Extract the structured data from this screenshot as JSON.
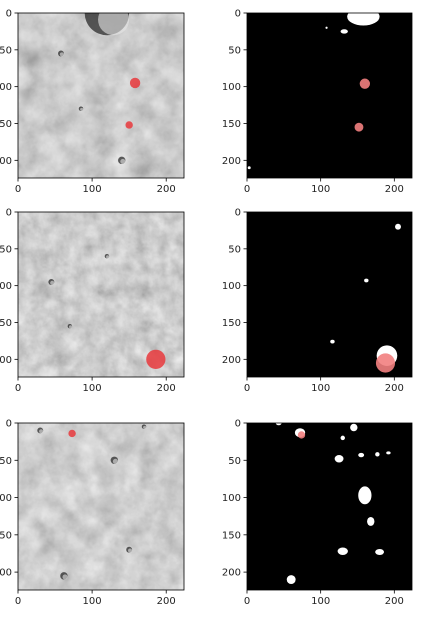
{
  "chart_data": [
    {
      "type": "image",
      "content": "terrain",
      "row": 0,
      "col": 0,
      "xlim": [
        0,
        224
      ],
      "ylim": [
        224,
        0
      ],
      "xticks": [
        0,
        100,
        200
      ],
      "yticks": [
        0,
        50,
        100,
        150,
        200
      ],
      "ytick_labels": [
        "0",
        "50",
        "100",
        "150",
        "200"
      ],
      "craters": [
        {
          "x": 120,
          "y": 0,
          "r": 30
        },
        {
          "x": 58,
          "y": 55,
          "r": 4
        },
        {
          "x": 85,
          "y": 130,
          "r": 3
        },
        {
          "x": 140,
          "y": 200,
          "r": 5
        }
      ],
      "overlays": [
        {
          "x": 158,
          "y": 95,
          "r": 7
        },
        {
          "x": 150,
          "y": 152,
          "r": 5
        }
      ],
      "colors": {
        "overlay": "#e8383c"
      }
    },
    {
      "type": "image",
      "content": "mask",
      "row": 0,
      "col": 1,
      "xlim": [
        0,
        224
      ],
      "ylim": [
        224,
        0
      ],
      "xticks": [
        0,
        100,
        200
      ],
      "yticks": [
        0,
        50,
        100,
        150,
        200
      ],
      "ytick_labels": [
        "0",
        "50",
        "100",
        "150",
        "200"
      ],
      "blobs": [
        {
          "x": 158,
          "y": 5,
          "rx": 22,
          "ry": 12
        },
        {
          "x": 132,
          "y": 25,
          "rx": 5,
          "ry": 3
        },
        {
          "x": 108,
          "y": 20,
          "rx": 1.5,
          "ry": 1.5
        },
        {
          "x": 3,
          "y": 210,
          "rx": 2,
          "ry": 2
        }
      ],
      "overlays": [
        {
          "x": 160,
          "y": 96,
          "r": 7
        },
        {
          "x": 152,
          "y": 155,
          "r": 6
        }
      ],
      "colors": {
        "overlay": "#f28080",
        "blob": "#ffffff",
        "background": "#000000"
      }
    },
    {
      "type": "image",
      "content": "terrain",
      "row": 1,
      "col": 0,
      "xlim": [
        0,
        224
      ],
      "ylim": [
        224,
        0
      ],
      "xticks": [
        0,
        100,
        200
      ],
      "yticks": [
        0,
        50,
        100,
        150,
        200
      ],
      "ytick_labels": [
        "0",
        "50",
        "100",
        "150",
        "200"
      ],
      "craters": [
        {
          "x": 45,
          "y": 95,
          "r": 4
        },
        {
          "x": 70,
          "y": 155,
          "r": 3
        },
        {
          "x": 120,
          "y": 60,
          "r": 3
        }
      ],
      "overlays": [
        {
          "x": 186,
          "y": 200,
          "r": 13
        }
      ],
      "colors": {
        "overlay": "#e8383c"
      }
    },
    {
      "type": "image",
      "content": "mask",
      "row": 1,
      "col": 1,
      "xlim": [
        0,
        224
      ],
      "ylim": [
        224,
        0
      ],
      "xticks": [
        0,
        100,
        200
      ],
      "yticks": [
        0,
        50,
        100,
        150,
        200
      ],
      "ytick_labels": [
        "0",
        "50",
        "100",
        "150",
        "200"
      ],
      "blobs": [
        {
          "x": 205,
          "y": 20,
          "rx": 4,
          "ry": 4
        },
        {
          "x": 162,
          "y": 93,
          "rx": 3,
          "ry": 2.5
        },
        {
          "x": 116,
          "y": 176,
          "rx": 3,
          "ry": 2.5
        },
        {
          "x": 190,
          "y": 195,
          "rx": 14,
          "ry": 14
        }
      ],
      "overlays": [
        {
          "x": 188,
          "y": 205,
          "r": 13
        }
      ],
      "colors": {
        "overlay": "#f28080",
        "blob": "#ffffff",
        "background": "#000000"
      }
    },
    {
      "type": "image",
      "content": "terrain",
      "row": 2,
      "col": 0,
      "xlim": [
        0,
        224
      ],
      "ylim": [
        224,
        0
      ],
      "xticks": [
        0,
        100,
        200
      ],
      "yticks": [
        0,
        50,
        100,
        150,
        200
      ],
      "ytick_labels": [
        "0",
        "50",
        "100",
        "150",
        "200"
      ],
      "craters": [
        {
          "x": 30,
          "y": 10,
          "r": 4
        },
        {
          "x": 130,
          "y": 50,
          "r": 5
        },
        {
          "x": 170,
          "y": 5,
          "r": 3
        },
        {
          "x": 62,
          "y": 205,
          "r": 5
        },
        {
          "x": 150,
          "y": 170,
          "r": 4
        }
      ],
      "overlays": [
        {
          "x": 73,
          "y": 14,
          "r": 5
        }
      ],
      "colors": {
        "overlay": "#e8383c"
      }
    },
    {
      "type": "image",
      "content": "mask",
      "row": 2,
      "col": 1,
      "xlim": [
        0,
        224
      ],
      "ylim": [
        224,
        0
      ],
      "xticks": [
        0,
        100,
        200
      ],
      "yticks": [
        0,
        50,
        100,
        150,
        200
      ],
      "ytick_labels": [
        "0",
        "50",
        "100",
        "150",
        "200"
      ],
      "blobs": [
        {
          "x": 43,
          "y": 0,
          "rx": 4,
          "ry": 3
        },
        {
          "x": 72,
          "y": 13,
          "rx": 7,
          "ry": 6
        },
        {
          "x": 130,
          "y": 20,
          "rx": 3,
          "ry": 3
        },
        {
          "x": 145,
          "y": 6,
          "rx": 5,
          "ry": 5
        },
        {
          "x": 125,
          "y": 48,
          "rx": 6,
          "ry": 5
        },
        {
          "x": 155,
          "y": 43,
          "rx": 4,
          "ry": 3
        },
        {
          "x": 177,
          "y": 42,
          "rx": 3,
          "ry": 3
        },
        {
          "x": 192,
          "y": 40,
          "rx": 3,
          "ry": 2
        },
        {
          "x": 160,
          "y": 97,
          "rx": 9,
          "ry": 12
        },
        {
          "x": 168,
          "y": 132,
          "rx": 5,
          "ry": 6
        },
        {
          "x": 130,
          "y": 172,
          "rx": 7,
          "ry": 5
        },
        {
          "x": 180,
          "y": 173,
          "rx": 6,
          "ry": 4
        },
        {
          "x": 60,
          "y": 210,
          "rx": 6,
          "ry": 6
        }
      ],
      "overlays": [
        {
          "x": 74,
          "y": 16,
          "r": 5
        }
      ],
      "colors": {
        "overlay": "#f28080",
        "blob": "#ffffff",
        "background": "#000000"
      }
    }
  ]
}
